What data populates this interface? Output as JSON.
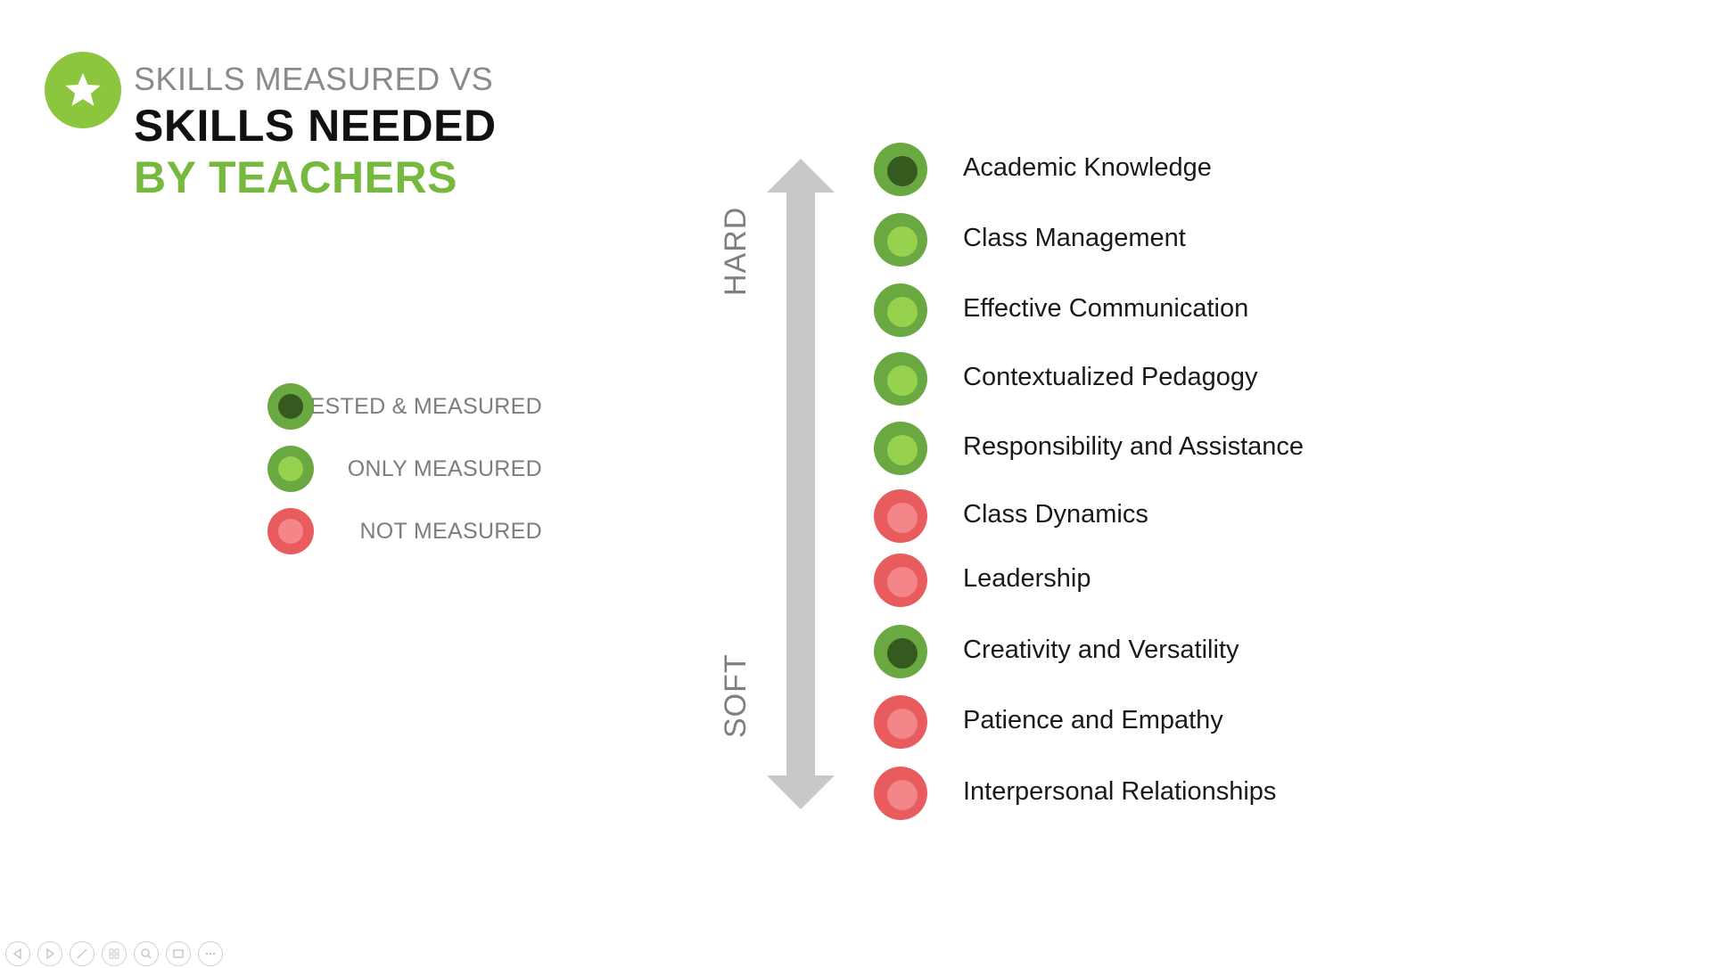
{
  "header": {
    "line1": "SKILLS MEASURED VS",
    "line2": "SKILLS NEEDED",
    "line3": "BY TEACHERS",
    "logo_icon": "star-icon"
  },
  "legend": [
    {
      "label": "TESTED & MEASURED",
      "status": "tested"
    },
    {
      "label": "ONLY MEASURED",
      "status": "only"
    },
    {
      "label": "NOT MEASURED",
      "status": "not"
    }
  ],
  "axis": {
    "top_label": "HARD",
    "bottom_label": "SOFT"
  },
  "skills": [
    {
      "label": "Academic Knowledge",
      "status": "tested"
    },
    {
      "label": "Class Management",
      "status": "only"
    },
    {
      "label": "Effective Communication",
      "status": "only"
    },
    {
      "label": "Contextualized Pedagogy",
      "status": "only"
    },
    {
      "label": "Responsibility and Assistance",
      "status": "only"
    },
    {
      "label": "Class Dynamics",
      "status": "not"
    },
    {
      "label": "Leadership",
      "status": "not"
    },
    {
      "label": "Creativity and Versatility",
      "status": "tested"
    },
    {
      "label": "Patience and Empathy",
      "status": "not"
    },
    {
      "label": "Interpersonal Relationships",
      "status": "not"
    }
  ],
  "colors": {
    "green_accent": "#8cc63f",
    "title_green": "#76b93e",
    "tested_inner": "#355a1f",
    "only_inner": "#96d24e",
    "not_outer": "#e85c5e",
    "axis_gray": "#c8c8c8"
  },
  "controls": [
    "prev-icon",
    "next-icon",
    "pen-icon",
    "slides-icon",
    "zoom-icon",
    "screen-icon",
    "more-icon"
  ]
}
